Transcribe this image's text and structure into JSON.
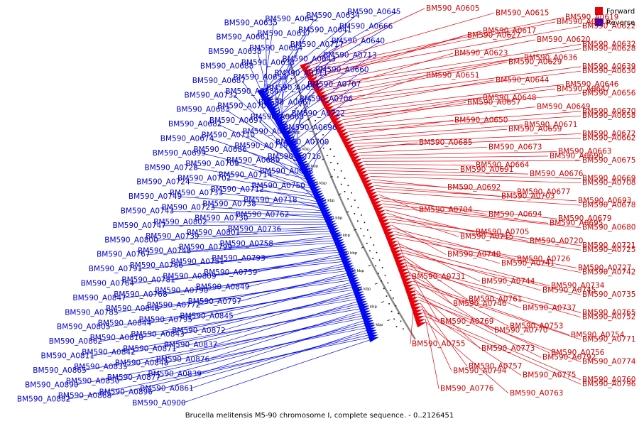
{
  "caption": "Brucella melitensis M5-90 chromosome I, complete sequence. - 0..2126451",
  "legend": [
    {
      "label": "Forward",
      "color": "#e8000b"
    },
    {
      "label": "Reverse",
      "color": "#0008f0"
    }
  ],
  "ticks": [
    "620 kbp",
    "640 kbp",
    "660 kbp",
    "680 kbp",
    "700 kbp",
    "720 kbp",
    "740 kbp",
    "760 kbp",
    "780 kbp",
    "800 kbp",
    "820 kbp",
    "840 kbp",
    "860 kbp",
    "880 kbp"
  ],
  "forward_genes": [
    "BM590_A0605",
    "BM590_A0615",
    "BM590_A0619",
    "BM590_A0610",
    "BM590_A0622",
    "BM590_A0617",
    "BM590_A0627",
    "BM590_A0620",
    "BM590_A0632",
    "BM590_A0628",
    "BM590_A0623",
    "BM590_A0636",
    "BM590_A0629",
    "BM590_A0639",
    "BM590_A0630",
    "BM590_A0651",
    "BM590_A0644",
    "BM590_A0646",
    "BM590_A0647",
    "BM590_A0656",
    "BM590_A0648",
    "BM590_A0657",
    "BM590_A0649",
    "BM590_A0670",
    "BM590_A0658",
    "BM590_A0650",
    "BM590_A0671",
    "BM590_A0659",
    "BM590_A0672",
    "BM590_A0662",
    "BM590_A0685",
    "BM590_A0673",
    "BM590_A0663",
    "BM590_A0690",
    "BM590_A0675",
    "BM590_A0664",
    "BM590_A0691",
    "BM590_A0676",
    "BM590_A0669",
    "BM590_A0708",
    "BM590_A0692",
    "BM590_A0677",
    "BM590_A0703",
    "BM590_A0693",
    "BM590_A0678",
    "BM590_A0704",
    "BM590_A0694",
    "BM590_A0679",
    "BM590_A0695",
    "BM590_A0680",
    "BM590_A0705",
    "BM590_A0715",
    "BM590_A0720",
    "BM590_A0721",
    "BM590_A0725",
    "BM590_A0740",
    "BM590_A0726",
    "BM590_A0741",
    "BM590_A0727",
    "BM590_A0742",
    "BM590_A0731",
    "BM590_A0744",
    "BM590_A0734",
    "BM590_A0745",
    "BM590_A0735",
    "BM590_A0761",
    "BM590_A0746",
    "BM590_A0737",
    "BM590_A0765",
    "BM590_A0752",
    "BM590_A0769",
    "BM590_A0753",
    "BM590_A0770",
    "BM590_A0754",
    "BM590_A0771",
    "BM590_A0755",
    "BM590_A0773",
    "BM590_A0756",
    "BM590_A0792",
    "BM590_A0774",
    "BM590_A0757",
    "BM590_A0794",
    "BM590_A0775",
    "BM590_A0760",
    "BM590_A0796",
    "BM590_A0776",
    "BM590_A0763"
  ],
  "reverse_genes": [
    "BM590_A0645",
    "BM590_A0634",
    "BM590_A0642",
    "BM590_A0635",
    "BM590_A0666",
    "BM590_A0641",
    "BM590_A0637",
    "BM590_A0661",
    "BM590_A0640",
    "BM590_A0717",
    "BM590_A0654",
    "BM590_A0638",
    "BM590_A0713",
    "BM590_A0643",
    "BM590_A0633",
    "BM590_A0688",
    "BM590_A0660",
    "BM590_A0711",
    "BM590_A0653",
    "BM590_A0687",
    "BM590_A0707",
    "BM590_A0655",
    "BM590_A0684",
    "BM590_A0732",
    "BM590_A0706",
    "BM590_A0667",
    "BM590_A0701",
    "BM590_A0683",
    "BM590_A0722",
    "BM590_A0668",
    "BM590_A0697",
    "BM590_A0682",
    "BM590_A0696",
    "BM590_A0729",
    "BM590_A0710",
    "BM590_A0674",
    "BM590_A0700",
    "BM590_A0719",
    "BM590_A0686",
    "BM590_A0699",
    "BM590_A0716",
    "BM590_A0689",
    "BM590_A0709",
    "BM590_A0728",
    "BM590_A0698",
    "BM590_A0714",
    "BM590_A0702",
    "BM590_A0724",
    "BM590_A0750",
    "BM590_A0712",
    "BM590_A0733",
    "BM590_A0749",
    "BM590_A0718",
    "BM590_A0738",
    "BM590_A0723",
    "BM590_A0743",
    "BM590_A0762",
    "BM590_A0730",
    "BM590_A0802",
    "BM590_A0747",
    "BM590_A0736",
    "BM590_A0801",
    "BM590_A0739",
    "BM590_A0800",
    "BM590_A0758",
    "BM590_A0799",
    "BM590_A0748",
    "BM590_A0767",
    "BM590_A0793",
    "BM590_A0751",
    "BM590_A0766",
    "BM590_A0791",
    "BM590_A0759",
    "BM590_A0809",
    "BM590_A0781",
    "BM590_A0764",
    "BM590_A0849",
    "BM590_A0790",
    "BM590_A0768",
    "BM590_A0847",
    "BM590_A0797",
    "BM590_A0772",
    "BM590_A0846",
    "BM590_A0785",
    "BM590_A0845",
    "BM590_A0795",
    "BM590_A0844",
    "BM590_A0805",
    "BM590_A0872",
    "BM590_A0843",
    "BM590_A0810",
    "BM590_A0862",
    "BM590_A0837",
    "BM590_A0871",
    "BM590_A0842",
    "BM590_A0811",
    "BM590_A0876",
    "BM590_A0848",
    "BM590_A0835",
    "BM590_A0865",
    "BM590_A0839",
    "BM590_A0877",
    "BM590_A0850",
    "BM590_A0890",
    "BM590_A0861",
    "BM590_A0896",
    "BM590_A0868",
    "BM590_A0882",
    "BM590_A0900"
  ]
}
